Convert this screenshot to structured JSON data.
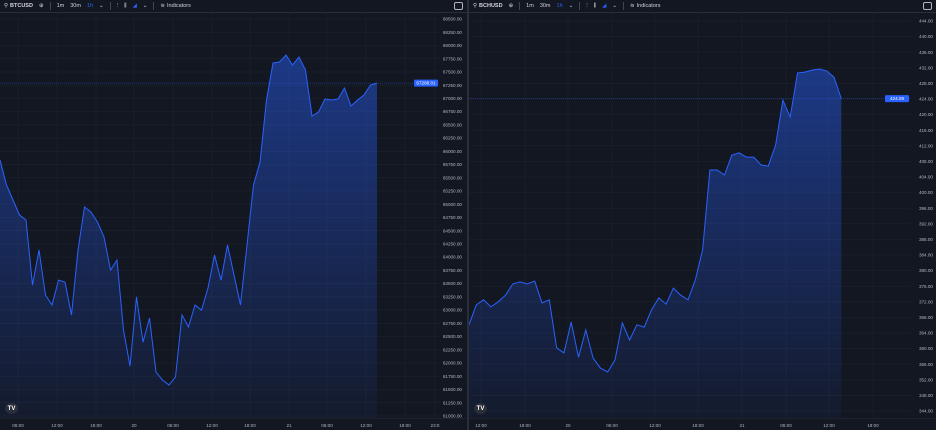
{
  "colors": {
    "background": "#131722",
    "line": "#2962ff",
    "grid": "#1e222d",
    "price_tag": "#2962ff"
  },
  "charts": [
    {
      "toolbar": {
        "symbol": "BTCUSD",
        "intervals": [
          "1m",
          "30m",
          "1h"
        ],
        "active_interval": "1h",
        "indicators_label": "Indicators"
      },
      "price_tag": "67288.01",
      "chart_data": {
        "type": "area",
        "interval": "1h",
        "ylim": [
          61000,
          68500
        ],
        "y_ticks": [
          "68500.00",
          "68250.00",
          "68000.00",
          "67750.00",
          "67500.00",
          "67250.00",
          "67000.00",
          "66750.00",
          "66500.00",
          "66250.00",
          "66000.00",
          "65750.00",
          "65500.00",
          "65250.00",
          "65000.00",
          "64750.00",
          "64500.00",
          "64250.00",
          "64000.00",
          "63750.00",
          "63500.00",
          "63250.00",
          "63000.00",
          "62750.00",
          "62500.00",
          "62250.00",
          "62000.00",
          "61750.00",
          "61500.00",
          "61250.00",
          "61000.00"
        ],
        "x_ticks": [
          "06:00",
          "12:00",
          "18:00",
          "20",
          "06:00",
          "12:00",
          "18:00",
          "21",
          "06:00",
          "12:00",
          "18:00",
          "23:0"
        ],
        "values": [
          65835,
          65363,
          65079,
          64796,
          64701,
          63473,
          64134,
          63284,
          63095,
          63567,
          63529,
          62906,
          64134,
          64947,
          64852,
          64663,
          64380,
          63756,
          63945,
          62622,
          61942,
          63246,
          62395,
          62849,
          61828,
          61677,
          61583,
          61734,
          62906,
          62679,
          63095,
          63000,
          63416,
          64040,
          63567,
          64229,
          63662,
          63095,
          64229,
          65363,
          65797,
          66969,
          67668,
          67687,
          67820,
          67631,
          67782,
          67536,
          66667,
          66742,
          66988,
          66969,
          66988,
          67196,
          66856,
          66969,
          67064,
          67253,
          67288.01
        ]
      }
    },
    {
      "toolbar": {
        "symbol": "BCHUSD",
        "intervals": [
          "1m",
          "30m",
          "1h"
        ],
        "active_interval": "1h",
        "indicators_label": "Indicators"
      },
      "price_tag": "424.09",
      "chart_data": {
        "type": "area",
        "interval": "1h",
        "ylim": [
          348,
          444
        ],
        "y_ticks": [
          "444.00",
          "440.00",
          "436.00",
          "432.00",
          "428.00",
          "424.00",
          "420.00",
          "416.00",
          "412.00",
          "408.00",
          "404.00",
          "400.00",
          "396.00",
          "392.00",
          "388.00",
          "384.00",
          "380.00",
          "376.00",
          "372.00",
          "368.00",
          "364.00",
          "360.00",
          "356.00",
          "352.00",
          "348.00",
          "344.00"
        ],
        "x_ticks": [
          "12:00",
          "18:00",
          "20",
          "06:00",
          "12:00",
          "18:00",
          "21",
          "06:00",
          "12:00",
          "18:00"
        ],
        "values": [
          366.1,
          371.2,
          372.5,
          370.7,
          372.0,
          373.7,
          376.6,
          377.1,
          376.6,
          377.3,
          371.7,
          372.5,
          360.2,
          358.9,
          366.8,
          357.8,
          364.8,
          357.6,
          355.0,
          354.0,
          357.1,
          366.6,
          362.2,
          366.1,
          365.5,
          369.9,
          373.0,
          371.4,
          375.5,
          373.7,
          372.5,
          377.6,
          385.3,
          405.8,
          405.8,
          404.5,
          409.6,
          410.2,
          409.1,
          409.1,
          407.1,
          406.8,
          412.2,
          423.7,
          419.4,
          430.7,
          430.9,
          431.4,
          431.7,
          431.2,
          429.6,
          424.09
        ]
      }
    }
  ]
}
